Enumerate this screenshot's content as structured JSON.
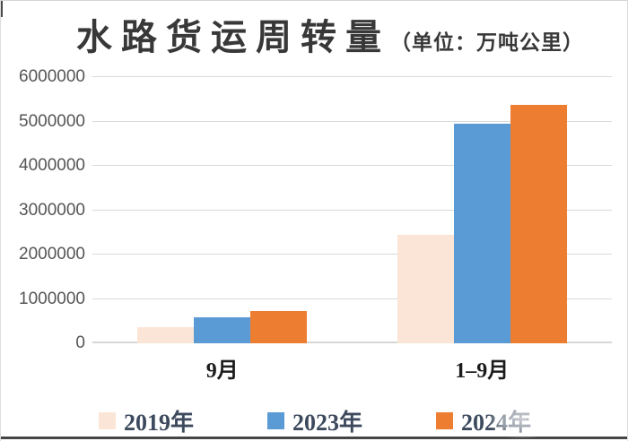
{
  "title": {
    "main": "水路货运周转量",
    "unit_suffix": "（单位：万吨公里）"
  },
  "chart_data": {
    "type": "bar",
    "title": "水路货运周转量（单位：万吨公里）",
    "unit": "万吨公里",
    "categories": [
      "9月",
      "1–9月"
    ],
    "series": [
      {
        "name": "2019年",
        "color": "#fbe5d6",
        "values": [
          360000,
          2450000
        ]
      },
      {
        "name": "2023年",
        "color": "#5b9bd5",
        "values": [
          590000,
          4950000
        ]
      },
      {
        "name": "2024年",
        "color": "#ed7d31",
        "values": [
          730000,
          5380000
        ]
      }
    ],
    "ylim": [
      0,
      6000000
    ],
    "yticks": [
      0,
      1000000,
      2000000,
      3000000,
      4000000,
      5000000,
      6000000
    ],
    "grid": "horizontal",
    "legend_position": "bottom"
  },
  "colors": {
    "gridline": "#d9d9d9",
    "axis_label": "#555555",
    "title_text": "#383838",
    "category_label": "#1c1c1c",
    "legend_label": "#3d4a5d",
    "bottom_border": "#454545"
  }
}
